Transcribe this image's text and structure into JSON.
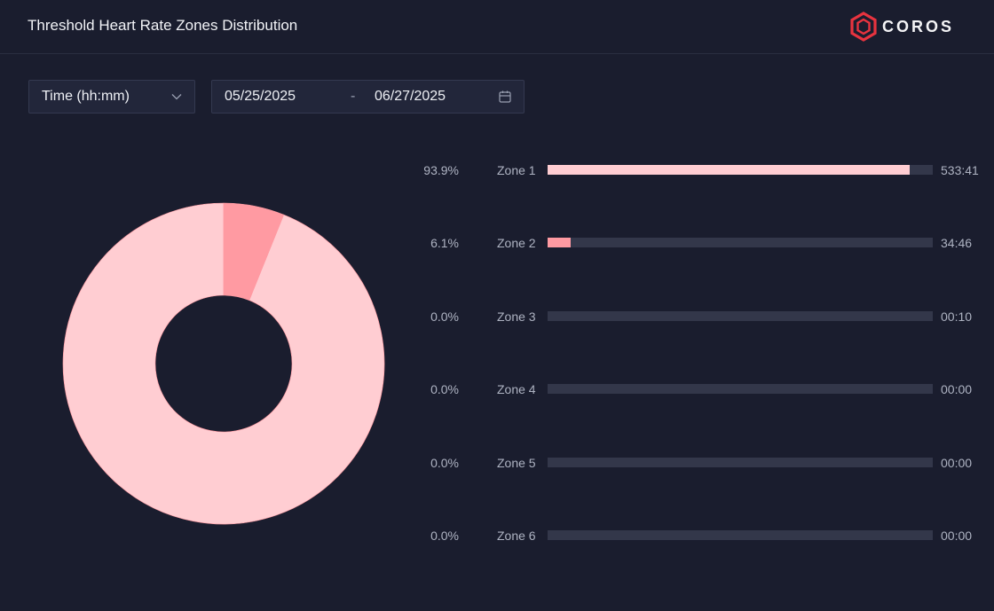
{
  "header": {
    "title": "Threshold Heart Rate Zones Distribution",
    "logo_text": "COROS"
  },
  "filters": {
    "metric_select": "Time (hh:mm)",
    "date_start": "05/25/2025",
    "date_separator": "-",
    "date_end": "06/27/2025"
  },
  "icons": {
    "dropdown": "chevron-down-icon",
    "calendar": "calendar-icon",
    "logo": "coros-hexagon-logo-icon"
  },
  "colors": {
    "zone1": "#ffcdd2",
    "zone2": "#ff9aa2",
    "track": "#33374a",
    "brand_red": "#e8333f"
  },
  "chart_data": {
    "type": "pie",
    "donut": true,
    "categories": [
      "Zone 1",
      "Zone 2",
      "Zone 3",
      "Zone 4",
      "Zone 5",
      "Zone 6"
    ],
    "values": [
      93.9,
      6.1,
      0.0,
      0.0,
      0.0,
      0.0
    ],
    "percent_labels": [
      "93.9%",
      "6.1%",
      "0.0%",
      "0.0%",
      "0.0%",
      "0.0%"
    ],
    "durations": [
      "533:41",
      "34:46",
      "00:10",
      "00:00",
      "00:00",
      "00:00"
    ]
  }
}
